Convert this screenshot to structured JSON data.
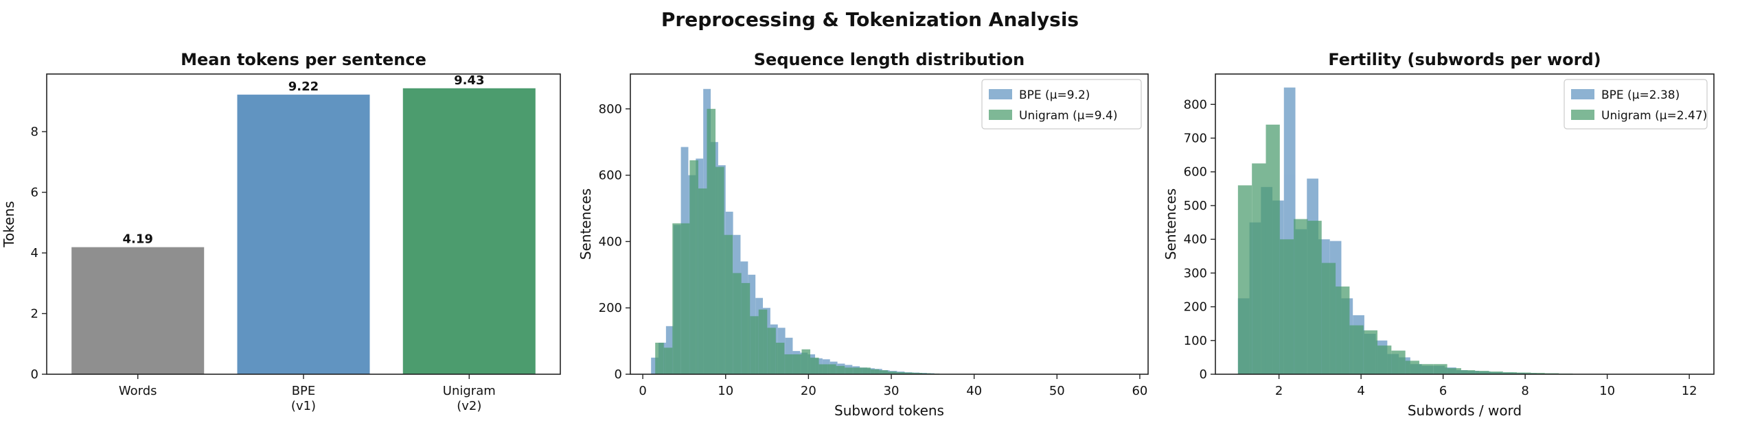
{
  "figure_title": "Preprocessing & Tokenization Analysis",
  "colors": {
    "words": "#8f8f8f",
    "bpe": "#6194c1",
    "unigram": "#4c9c6e"
  },
  "chart_data": [
    {
      "type": "bar",
      "title": "Mean tokens per sentence",
      "xlabel": "",
      "ylabel": "Tokens",
      "categories": [
        "Words",
        "BPE\n(v1)",
        "Unigram\n(v2)"
      ],
      "values": [
        4.19,
        9.22,
        9.43
      ],
      "data_labels": [
        "4.19",
        "9.22",
        "9.43"
      ],
      "ylim": [
        0,
        9.9
      ],
      "yticks": [
        0,
        2,
        4,
        6,
        8
      ],
      "colors": [
        "#8f8f8f",
        "#6194c1",
        "#4c9c6e"
      ],
      "grid": false
    },
    {
      "type": "histogram",
      "title": "Sequence length distribution",
      "xlabel": "Subword tokens",
      "ylabel": "Sentences",
      "xlim": [
        -1.5,
        61
      ],
      "ylim": [
        0,
        905
      ],
      "xticks": [
        0,
        10,
        20,
        30,
        40,
        50,
        60
      ],
      "yticks": [
        0,
        200,
        400,
        600,
        800
      ],
      "legend_position": "top-right",
      "grid": false,
      "series": [
        {
          "name": "BPE (μ=9.2)",
          "color": "#6194c1",
          "bin_width": 0.9,
          "x": [
            1.0,
            1.9,
            2.8,
            3.7,
            4.6,
            5.5,
            6.4,
            7.3,
            8.2,
            9.1,
            10.0,
            10.9,
            11.8,
            12.7,
            13.6,
            14.5,
            15.4,
            16.3,
            17.2,
            18.1,
            19.0,
            19.9,
            20.8,
            21.7,
            22.6,
            23.5,
            24.4,
            25.3,
            26.2,
            27.1,
            28.0,
            28.9,
            29.8,
            30.7,
            31.6,
            32.5,
            33.4,
            34.3
          ],
          "counts": [
            50,
            95,
            145,
            450,
            685,
            600,
            650,
            860,
            700,
            630,
            490,
            420,
            340,
            300,
            230,
            200,
            150,
            140,
            110,
            70,
            65,
            60,
            48,
            45,
            38,
            32,
            28,
            24,
            20,
            18,
            16,
            12,
            10,
            8,
            6,
            5,
            4,
            3
          ]
        },
        {
          "name": "Unigram (μ=9.4)",
          "color": "#4c9c6e",
          "bin_width": 1.04,
          "x": [
            1.5,
            2.54,
            3.58,
            4.62,
            5.66,
            6.7,
            7.74,
            8.78,
            9.82,
            10.86,
            11.9,
            12.94,
            13.98,
            15.02,
            16.06,
            17.1,
            18.14,
            19.18,
            20.22,
            21.26,
            22.3,
            23.34,
            24.38,
            25.42,
            26.46,
            27.5,
            28.54,
            29.58,
            30.62,
            31.66,
            32.7,
            33.74,
            34.78
          ],
          "counts": [
            95,
            80,
            455,
            455,
            645,
            560,
            800,
            625,
            420,
            305,
            275,
            175,
            195,
            140,
            95,
            60,
            60,
            75,
            50,
            30,
            30,
            25,
            20,
            20,
            20,
            15,
            12,
            8,
            6,
            5,
            4,
            3,
            2
          ]
        }
      ]
    },
    {
      "type": "histogram",
      "title": "Fertility (subwords per word)",
      "xlabel": "Subwords / word",
      "ylabel": "Sentences",
      "xlim": [
        0.45,
        12.6
      ],
      "ylim": [
        0,
        890
      ],
      "xticks": [
        2,
        4,
        6,
        8,
        10,
        12
      ],
      "yticks": [
        0,
        100,
        200,
        300,
        400,
        500,
        600,
        700,
        800
      ],
      "legend_position": "top-right",
      "grid": false,
      "series": [
        {
          "name": "BPE (μ=2.38)",
          "color": "#6194c1",
          "bin_width": 0.28,
          "x": [
            1.0,
            1.28,
            1.56,
            1.84,
            2.12,
            2.4,
            2.68,
            2.96,
            3.24,
            3.52,
            3.8,
            4.08,
            4.36,
            4.64,
            4.92,
            5.2,
            5.48,
            5.76,
            6.04,
            6.32,
            6.6,
            6.88,
            7.16,
            7.44,
            7.72,
            8.0
          ],
          "counts": [
            225,
            450,
            555,
            515,
            850,
            430,
            580,
            400,
            395,
            225,
            175,
            120,
            100,
            60,
            50,
            30,
            25,
            25,
            20,
            12,
            10,
            8,
            6,
            5,
            4,
            3
          ]
        },
        {
          "name": "Unigram (μ=2.47)",
          "color": "#4c9c6e",
          "bin_width": 0.34,
          "x": [
            1.0,
            1.34,
            1.68,
            2.02,
            2.36,
            2.7,
            3.04,
            3.38,
            3.72,
            4.06,
            4.4,
            4.74,
            5.08,
            5.42,
            5.76,
            6.1,
            6.44,
            6.78,
            7.12,
            7.46,
            7.8,
            8.14,
            8.48,
            8.82
          ],
          "counts": [
            560,
            625,
            740,
            400,
            460,
            455,
            330,
            260,
            145,
            130,
            85,
            70,
            40,
            30,
            30,
            18,
            12,
            10,
            8,
            6,
            5,
            4,
            3,
            2
          ]
        }
      ]
    }
  ]
}
